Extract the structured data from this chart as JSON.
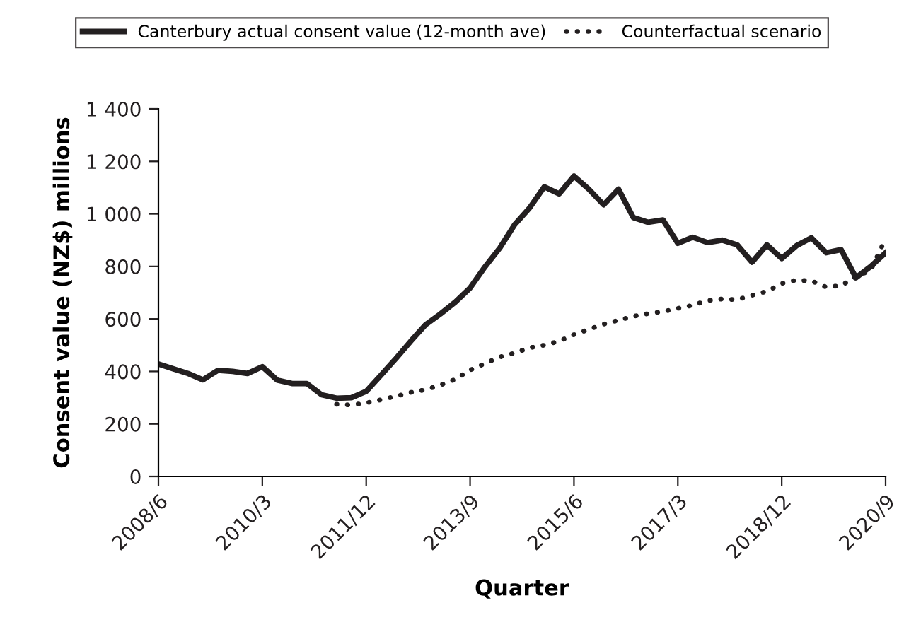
{
  "chart_data": {
    "type": "line",
    "xlabel": "Quarter",
    "ylabel": "Consent value (NZ$) millions",
    "categories": [
      "2008/6",
      null,
      null,
      null,
      null,
      null,
      null,
      "2010/3",
      null,
      null,
      null,
      null,
      null,
      null,
      "2011/12",
      null,
      null,
      null,
      null,
      null,
      null,
      "2013/9",
      null,
      null,
      null,
      null,
      null,
      null,
      "2015/6",
      null,
      null,
      null,
      null,
      null,
      null,
      "2017/3",
      null,
      null,
      null,
      null,
      null,
      null,
      "2018/12",
      null,
      null,
      null,
      null,
      null,
      null,
      "2020/9"
    ],
    "series": [
      {
        "name": "Canterbury actual consent value (12-month ave)",
        "color": "#231f20",
        "line_style": "solid",
        "values": [
          428,
          410,
          392,
          368,
          404,
          400,
          392,
          418,
          367,
          354,
          354,
          311,
          298,
          300,
          324,
          386,
          449,
          515,
          578,
          619,
          664,
          718,
          798,
          870,
          959,
          1022,
          1103,
          1076,
          1144,
          1094,
          1035,
          1094,
          986,
          968,
          977,
          888,
          911,
          891,
          900,
          882,
          816,
          882,
          830,
          879,
          909,
          852,
          864,
          757,
          800,
          852
        ]
      },
      {
        "name": "Counterfactual scenario",
        "color": "#231f20",
        "line_style": "dotted",
        "values": [
          null,
          null,
          null,
          null,
          null,
          null,
          null,
          null,
          null,
          null,
          null,
          null,
          275,
          272,
          280,
          292,
          305,
          320,
          330,
          348,
          370,
          405,
          430,
          455,
          470,
          490,
          500,
          515,
          540,
          560,
          580,
          595,
          610,
          620,
          628,
          640,
          652,
          670,
          676,
          673,
          690,
          705,
          735,
          748,
          745,
          721,
          727,
          760,
          786,
          906
        ]
      }
    ],
    "ylim": [
      0,
      1400
    ],
    "yticks": [
      0,
      200,
      400,
      600,
      800,
      {
        "value": 1000,
        "label": "1 000"
      },
      {
        "value": 1200,
        "label": "1 200"
      },
      {
        "value": 1400,
        "label": "1 400"
      }
    ],
    "grid": false,
    "legend": "top",
    "marker": "none"
  }
}
